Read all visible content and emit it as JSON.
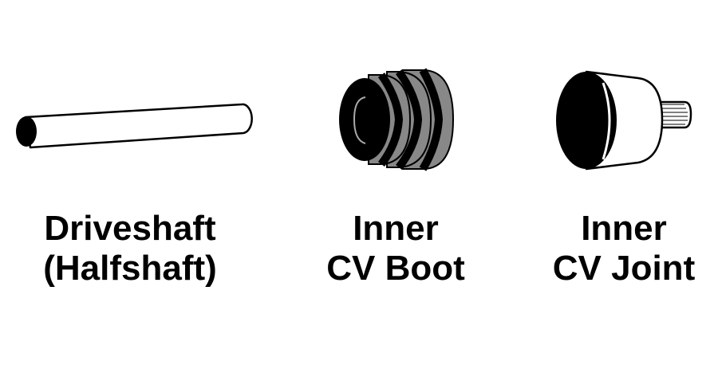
{
  "items": [
    {
      "line1": "Driveshaft",
      "line2": "(Halfshaft)",
      "icon": "driveshaft-icon"
    },
    {
      "line1": "Inner",
      "line2": "CV Boot",
      "icon": "cv-boot-icon"
    },
    {
      "line1": "Inner",
      "line2": "CV Joint",
      "icon": "cv-joint-icon"
    }
  ],
  "colors": {
    "ink": "#000000",
    "boot_rib": "#888888",
    "fill": "#ffffff"
  }
}
